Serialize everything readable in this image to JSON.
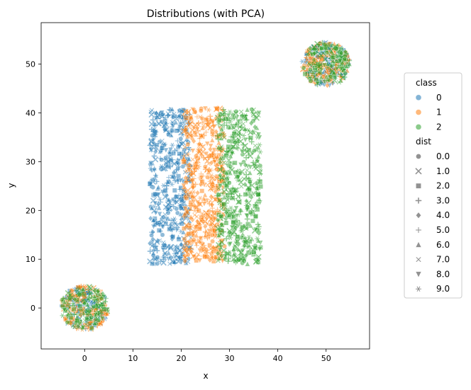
{
  "chart_data": {
    "type": "scatter",
    "title": "Distributions (with PCA)",
    "xlabel": "x",
    "ylabel": "y",
    "xlim": [
      -9,
      59
    ],
    "ylim": [
      -8.4,
      58.5
    ],
    "xticks": [
      0,
      10,
      20,
      30,
      40,
      50
    ],
    "yticks": [
      0,
      10,
      20,
      30,
      40,
      50
    ],
    "grid": false,
    "legend_placement": "right",
    "legend": {
      "hue_title": "class",
      "hue_entries": [
        {
          "label": "0",
          "color": "#1f77b4"
        },
        {
          "label": "1",
          "color": "#ff7f0e"
        },
        {
          "label": "2",
          "color": "#2ca02c"
        }
      ],
      "style_title": "dist",
      "style_entries": [
        {
          "label": "0.0",
          "marker": "circle"
        },
        {
          "label": "1.0",
          "marker": "x"
        },
        {
          "label": "2.0",
          "marker": "square"
        },
        {
          "label": "3.0",
          "marker": "plus"
        },
        {
          "label": "4.0",
          "marker": "diamond"
        },
        {
          "label": "5.0",
          "marker": "thin-plus"
        },
        {
          "label": "6.0",
          "marker": "triangle-up"
        },
        {
          "label": "7.0",
          "marker": "thin-x"
        },
        {
          "label": "8.0",
          "marker": "triangle-down"
        },
        {
          "label": "9.0",
          "marker": "star"
        }
      ]
    },
    "series": [
      {
        "name": "0",
        "color": "#1f77b4",
        "clusters": [
          {
            "shape": "disk",
            "center": [
              0,
              0
            ],
            "radius": [
              5,
              4.5
            ]
          },
          {
            "shape": "disk",
            "center": [
              50,
              50
            ],
            "radius": [
              5,
              4.5
            ]
          },
          {
            "shape": "band",
            "x": [
              13.5,
              22
            ],
            "y": [
              9,
              41
            ]
          }
        ]
      },
      {
        "name": "1",
        "color": "#ff7f0e",
        "clusters": [
          {
            "shape": "disk",
            "center": [
              0,
              0
            ],
            "radius": [
              5,
              4.5
            ]
          },
          {
            "shape": "disk",
            "center": [
              50,
              50
            ],
            "radius": [
              5,
              4.5
            ]
          },
          {
            "shape": "band",
            "x": [
              20.5,
              29
            ],
            "y": [
              9.5,
              41
            ]
          }
        ]
      },
      {
        "name": "2",
        "color": "#2ca02c",
        "clusters": [
          {
            "shape": "disk",
            "center": [
              0,
              0
            ],
            "radius": [
              5,
              4.5
            ]
          },
          {
            "shape": "disk",
            "center": [
              50,
              50
            ],
            "radius": [
              5,
              4.5
            ]
          },
          {
            "shape": "band",
            "x": [
              27.5,
              36.5
            ],
            "y": [
              9,
              41
            ]
          }
        ]
      }
    ]
  }
}
